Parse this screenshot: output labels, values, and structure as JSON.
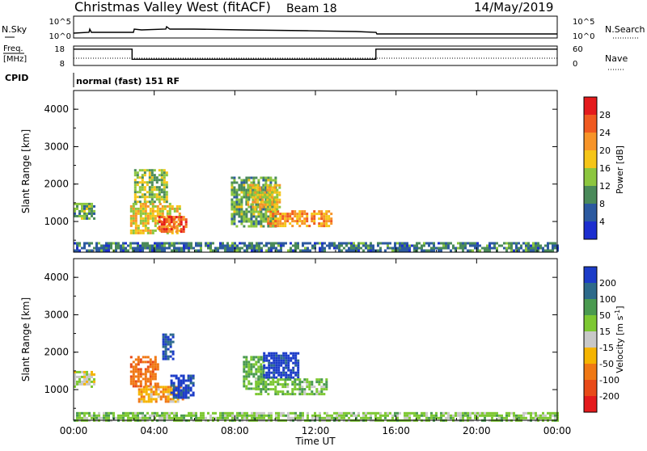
{
  "header": {
    "station": "Christmas Valley West (fitACF)",
    "beam": "Beam 18",
    "date": "14/May/2019"
  },
  "noise_panel": {
    "left_label": "N.Sky",
    "right_label": "N.Search",
    "ticks_left": [
      "10^5",
      "10^0"
    ],
    "ticks_right": [
      "10^5",
      "10^0"
    ]
  },
  "freq_panel": {
    "left_label_1": "Freq.",
    "left_label_2": "[MHz]",
    "right_label": "Nave",
    "left_ticks": [
      "18",
      "8"
    ],
    "right_ticks": [
      "60",
      "0"
    ]
  },
  "cpid": {
    "label": "CPID",
    "mode": "normal (fast) 151 RF"
  },
  "y_axis_label": "Slant Range [km]",
  "x_axis_label": "Time UT",
  "power_colorbar": {
    "label": "Power [dB]",
    "ticks": [
      "28",
      "24",
      "20",
      "16",
      "12",
      "8",
      "4"
    ],
    "colors": [
      "#e41a1c",
      "#f05a20",
      "#f79428",
      "#f5c518",
      "#8cc63f",
      "#4a8a5a",
      "#2c5aa0",
      "#1c2ecf"
    ]
  },
  "velocity_colorbar": {
    "label": "Velocity [m s",
    "label_sup": "-1",
    "label_close": "]",
    "ticks": [
      "200",
      "100",
      "50",
      "15",
      "-15",
      "-50",
      "-100",
      "-200"
    ],
    "colors": [
      "#1c3cc8",
      "#2d6a8a",
      "#4a9a50",
      "#7dc832",
      "#c8c8c8",
      "#f5b400",
      "#f07814",
      "#e84a18",
      "#e41a1c"
    ]
  },
  "chart_data": [
    {
      "type": "heatmap",
      "title": "Power [dB]",
      "xlabel": "Time UT",
      "ylabel": "Slant Range [km]",
      "x_ticks": [
        "00:00",
        "04:00",
        "08:00",
        "12:00",
        "16:00",
        "20:00",
        "00:00"
      ],
      "y_ticks": [
        "1000",
        "2000",
        "3000",
        "4000"
      ],
      "xlim_hours": [
        0,
        24
      ],
      "ylim_km": [
        180,
        4500
      ],
      "colorbar_range_db": [
        0,
        32
      ],
      "echo_regions": [
        {
          "t0": 0.0,
          "t1": 1.0,
          "r0": 1050,
          "r1": 1500,
          "value": 12
        },
        {
          "t0": 2.8,
          "t1": 5.3,
          "r0": 700,
          "r1": 1500,
          "value": 18
        },
        {
          "t0": 4.2,
          "t1": 5.6,
          "r0": 750,
          "r1": 1150,
          "value": 26
        },
        {
          "t0": 3.0,
          "t1": 4.6,
          "r0": 1500,
          "r1": 2400,
          "value": 14
        },
        {
          "t0": 7.8,
          "t1": 10.0,
          "r0": 900,
          "r1": 2200,
          "value": 12
        },
        {
          "t0": 9.6,
          "t1": 12.8,
          "r0": 850,
          "r1": 1300,
          "value": 22
        },
        {
          "t0": 8.6,
          "t1": 10.2,
          "r0": 1350,
          "r1": 2000,
          "value": 18
        },
        {
          "t0": 0.0,
          "t1": 24.0,
          "r0": 200,
          "r1": 450,
          "value": 8
        }
      ]
    },
    {
      "type": "heatmap",
      "title": "Velocity",
      "xlabel": "Time UT",
      "ylabel": "Slant Range [km]",
      "x_ticks": [
        "00:00",
        "04:00",
        "08:00",
        "12:00",
        "16:00",
        "20:00",
        "00:00"
      ],
      "y_ticks": [
        "1000",
        "2000",
        "3000",
        "4000"
      ],
      "xlim_hours": [
        0,
        24
      ],
      "ylim_km": [
        180,
        4500
      ],
      "colorbar_range_ms": [
        -250,
        250
      ],
      "echo_regions": [
        {
          "t0": 0.0,
          "t1": 1.0,
          "r0": 1050,
          "r1": 1500,
          "value": 0
        },
        {
          "t0": 2.8,
          "t1": 4.2,
          "r0": 1100,
          "r1": 1900,
          "value": -80
        },
        {
          "t0": 3.2,
          "t1": 5.4,
          "r0": 700,
          "r1": 1100,
          "value": -40
        },
        {
          "t0": 4.8,
          "t1": 6.0,
          "r0": 800,
          "r1": 1400,
          "value": 220
        },
        {
          "t0": 4.4,
          "t1": 5.0,
          "r0": 1800,
          "r1": 2500,
          "value": 200
        },
        {
          "t0": 8.4,
          "t1": 9.4,
          "r0": 1000,
          "r1": 1900,
          "value": 60
        },
        {
          "t0": 9.4,
          "t1": 11.2,
          "r0": 1300,
          "r1": 2000,
          "value": 220
        },
        {
          "t0": 9.0,
          "t1": 12.6,
          "r0": 850,
          "r1": 1300,
          "value": 40
        },
        {
          "t0": 0.0,
          "t1": 24.0,
          "r0": 200,
          "r1": 400,
          "value": 30
        }
      ]
    },
    {
      "type": "line",
      "title": "Freq.",
      "ylim_mhz": [
        8,
        18
      ],
      "x_hours": [
        0,
        2.9,
        2.9,
        15.0,
        15.0,
        24
      ],
      "freq_mhz": [
        16.4,
        16.4,
        11.2,
        11.2,
        16.4,
        16.4
      ]
    }
  ]
}
